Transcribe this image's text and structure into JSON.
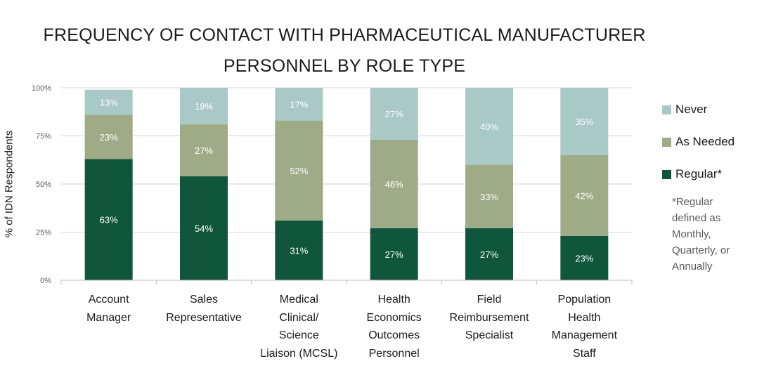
{
  "chart_data": {
    "type": "bar",
    "stacked": true,
    "title_lines": [
      "FREQUENCY OF CONTACT WITH  PHARMACEUTICAL MANUFACTURER",
      "PERSONNEL BY ROLE TYPE"
    ],
    "xlabel": "",
    "ylabel": "% of IDN Respondents",
    "ylim": [
      0,
      100
    ],
    "ytick_labels": [
      "0%",
      "25%",
      "50%",
      "75%",
      "100%"
    ],
    "ytick_values": [
      0,
      25,
      50,
      75,
      100
    ],
    "grid": true,
    "legend_position": "right",
    "categories": [
      [
        "Account",
        "Manager"
      ],
      [
        "Sales",
        "Representative"
      ],
      [
        "Medical",
        "Clinical/",
        "Science",
        "Liaison (MCSL)"
      ],
      [
        "Health",
        "Economics",
        "Outcomes",
        "Personnel"
      ],
      [
        "Field",
        "Reimbursement",
        "Specialist"
      ],
      [
        "Population",
        "Health",
        "Management",
        "Staff"
      ]
    ],
    "series": [
      {
        "name": "Regular*",
        "color": "#10563c",
        "values": [
          63,
          54,
          31,
          27,
          27,
          23
        ],
        "labels": [
          "63%",
          "54%",
          "31%",
          "27%",
          "27%",
          "23%"
        ]
      },
      {
        "name": "As Needed",
        "color": "#9eab86",
        "values": [
          23,
          27,
          52,
          46,
          33,
          42
        ],
        "labels": [
          "23%",
          "27%",
          "52%",
          "46%",
          "33%",
          "42%"
        ]
      },
      {
        "name": "Never",
        "color": "#a9c9c6",
        "values": [
          13,
          19,
          17,
          27,
          40,
          35
        ],
        "labels": [
          "13%",
          "19%",
          "17%",
          "27%",
          "40%",
          "35%"
        ]
      }
    ],
    "legend_order": [
      "Never",
      "As Needed",
      "Regular*"
    ],
    "footnote_lines": [
      "*Regular",
      "defined as",
      "Monthly,",
      "Quarterly, or",
      "Annually"
    ]
  }
}
